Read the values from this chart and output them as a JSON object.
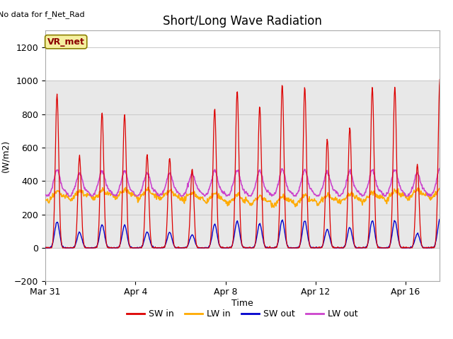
{
  "title": "Short/Long Wave Radiation",
  "xlabel": "Time",
  "ylabel": "(W/m2)",
  "top_left_text": "No data for f_Net_Rad",
  "annotation_box": "VR_met",
  "ylim": [
    -200,
    1300
  ],
  "yticks": [
    -200,
    0,
    200,
    400,
    600,
    800,
    1000,
    1200
  ],
  "xtick_labels": [
    "Mar 31",
    "Apr 4",
    "Apr 8",
    "Apr 12",
    "Apr 16"
  ],
  "xtick_positions": [
    0,
    4,
    8,
    12,
    16
  ],
  "xlim": [
    0,
    17.5
  ],
  "legend_entries": [
    "SW in",
    "LW in",
    "SW out",
    "LW out"
  ],
  "line_colors": {
    "SW_in": "#dd0000",
    "LW_in": "#ffaa00",
    "SW_out": "#0000cc",
    "LW_out": "#cc44cc"
  },
  "shaded_region": [
    0,
    1000
  ],
  "shaded_color": "#e8e8e8",
  "grid_color": "#cccccc",
  "sw_peaks": [
    920,
    550,
    810,
    800,
    560,
    540,
    470,
    830,
    940,
    850,
    980,
    960,
    650,
    720,
    960,
    960,
    500,
    1010
  ],
  "n_days": 18,
  "n_points_per_day": 48
}
